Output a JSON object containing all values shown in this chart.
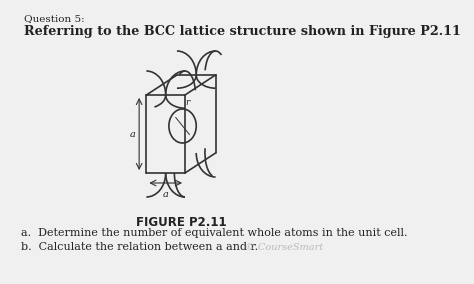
{
  "bg_color": "#f0f0f0",
  "title_small": "Question 5:",
  "title_large": "Referring to the BCC lattice structure shown in Figure P2.11",
  "figure_label": "FIGURE P2.11",
  "question_a": "a.  Determine the number of equivalent whole atoms in the unit cell.",
  "question_b": "b.  Calculate the relation between a and r.",
  "watermark": "© CourseSmart",
  "text_color": "#222222",
  "watermark_color": "#bbbbbb",
  "line_color": "#333333",
  "bg_color_fig": "#f0f0f0"
}
